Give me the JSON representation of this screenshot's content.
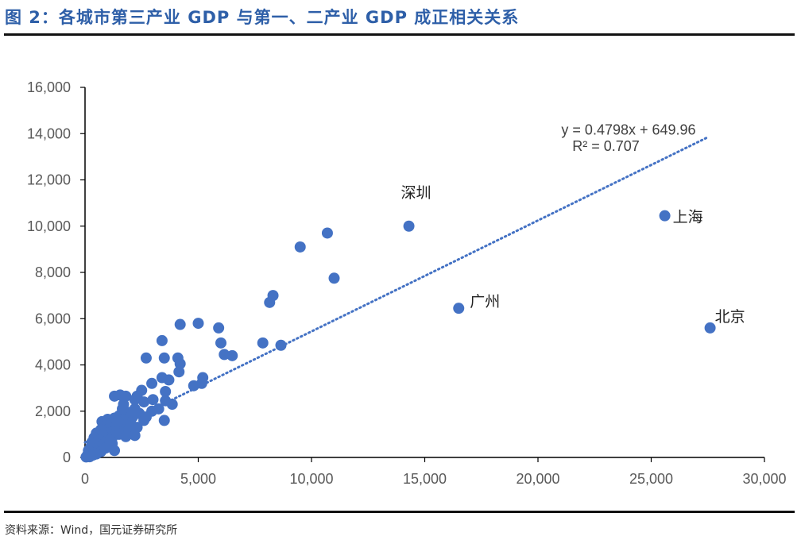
{
  "figure": {
    "title": "图 2：各城市第三产业 GDP 与第一、二产业 GDP 成正相关关系",
    "source": "资料来源：Wind，国元证券研究所"
  },
  "colors": {
    "accent": "#2e5fa8",
    "marker": "#4472c4",
    "trendline": "#4472c4"
  },
  "chart_data": {
    "type": "scatter",
    "title": "",
    "xlabel": "",
    "ylabel": "",
    "xlim": [
      0,
      30000
    ],
    "ylim": [
      0,
      16000
    ],
    "xticks": [
      "0",
      "5,000",
      "10,000",
      "15,000",
      "20,000",
      "25,000",
      "30,000"
    ],
    "yticks": [
      "0",
      "2,000",
      "4,000",
      "6,000",
      "8,000",
      "10,000",
      "12,000",
      "14,000",
      "16,000"
    ],
    "grid": false,
    "trendline": {
      "type": "linear",
      "slope": 0.4798,
      "intercept": 649.96,
      "equation": "y = 0.4798x + 649.96",
      "r2_label": "R² = 0.707",
      "x_range": [
        0,
        27500
      ]
    },
    "labeled_points": [
      {
        "label": "深圳",
        "x": 14300,
        "y": 10000
      },
      {
        "label": "上海",
        "x": 25600,
        "y": 10450
      },
      {
        "label": "广州",
        "x": 16500,
        "y": 6450
      },
      {
        "label": "北京",
        "x": 27600,
        "y": 5600
      }
    ],
    "points": [
      [
        10700,
        9700
      ],
      [
        9500,
        9100
      ],
      [
        11000,
        7750
      ],
      [
        8300,
        7000
      ],
      [
        8150,
        6700
      ],
      [
        4200,
        5750
      ],
      [
        5000,
        5800
      ],
      [
        5900,
        5600
      ],
      [
        3400,
        5050
      ],
      [
        6000,
        4950
      ],
      [
        7850,
        4950
      ],
      [
        8650,
        4850
      ],
      [
        6150,
        4450
      ],
      [
        6500,
        4400
      ],
      [
        2700,
        4300
      ],
      [
        3500,
        4300
      ],
      [
        4100,
        4300
      ],
      [
        4200,
        4050
      ],
      [
        4150,
        3700
      ],
      [
        5200,
        3450
      ],
      [
        3400,
        3450
      ],
      [
        3700,
        3350
      ],
      [
        2950,
        3200
      ],
      [
        5150,
        3200
      ],
      [
        4800,
        3100
      ],
      [
        2500,
        2900
      ],
      [
        3550,
        2850
      ],
      [
        2300,
        2650
      ],
      [
        1550,
        2700
      ],
      [
        1300,
        2650
      ],
      [
        1800,
        2650
      ],
      [
        2200,
        2500
      ],
      [
        3550,
        2450
      ],
      [
        3000,
        2500
      ],
      [
        2600,
        2400
      ],
      [
        1700,
        2300
      ],
      [
        3850,
        2300
      ],
      [
        3250,
        2100
      ],
      [
        2200,
        2100
      ],
      [
        2950,
        2000
      ],
      [
        1900,
        1950
      ],
      [
        2400,
        1900
      ],
      [
        1500,
        1800
      ],
      [
        2100,
        1750
      ],
      [
        1300,
        1700
      ],
      [
        1700,
        1650
      ],
      [
        1000,
        1650
      ],
      [
        750,
        1550
      ],
      [
        2600,
        1600
      ],
      [
        3500,
        1600
      ],
      [
        2000,
        1550
      ],
      [
        1200,
        1500
      ],
      [
        1500,
        1450
      ],
      [
        1800,
        1400
      ],
      [
        900,
        1350
      ],
      [
        1100,
        1300
      ],
      [
        1600,
        1250
      ],
      [
        2300,
        1300
      ],
      [
        700,
        1200
      ],
      [
        1300,
        1150
      ],
      [
        1900,
        1150
      ],
      [
        500,
        1050
      ],
      [
        1000,
        1050
      ],
      [
        1500,
        1000
      ],
      [
        2200,
        950
      ],
      [
        1800,
        900
      ],
      [
        800,
        950
      ],
      [
        400,
        850
      ],
      [
        1200,
        850
      ],
      [
        650,
        750
      ],
      [
        950,
        700
      ],
      [
        300,
        650
      ],
      [
        500,
        600
      ],
      [
        800,
        550
      ],
      [
        1200,
        600
      ],
      [
        250,
        450
      ],
      [
        600,
        450
      ],
      [
        400,
        350
      ],
      [
        1300,
        300
      ],
      [
        150,
        300
      ],
      [
        700,
        250
      ],
      [
        300,
        200
      ],
      [
        500,
        150
      ],
      [
        120,
        120
      ],
      [
        250,
        80
      ],
      [
        100,
        50
      ],
      [
        50,
        20
      ],
      [
        200,
        30
      ],
      [
        350,
        100
      ],
      [
        900,
        400
      ],
      [
        1100,
        750
      ],
      [
        1450,
        1550
      ],
      [
        2000,
        1950
      ],
      [
        2700,
        1750
      ],
      [
        1650,
        2100
      ]
    ]
  }
}
